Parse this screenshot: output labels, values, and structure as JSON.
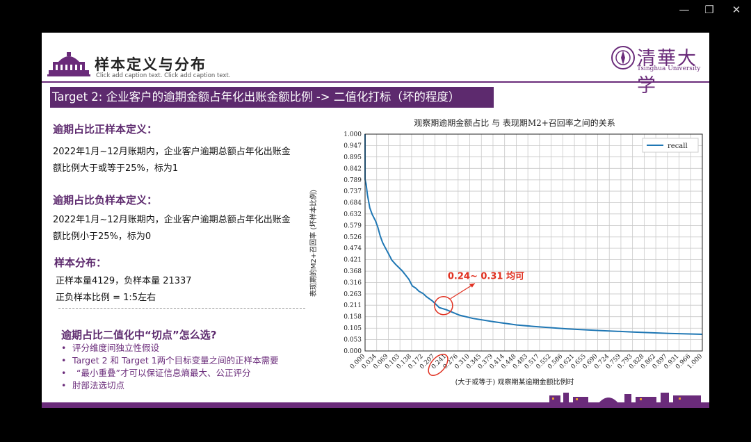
{
  "window": {
    "minimize": "—",
    "restore": "❐",
    "close": "✕"
  },
  "slide": {
    "title": "样本定义与分布",
    "caption": "Click add caption text. Click add caption text.",
    "logo_cn": "清華大学",
    "logo_en": "Tsinghua University",
    "banner": "Target 2: 企业客户的逾期金额占年化出账金额比例 -> 二值化打标（坏的程度）",
    "pos_heading": "逾期占比正样本定义：",
    "pos_line1": "2022年1月~12月账期内，企业客户逾期总额占年化出账金",
    "pos_line2": "额比例大于或等于25%，标为1",
    "neg_heading": "逾期占比负样本定义：",
    "neg_line1": "2022年1月~12月账期内，企业客户逾期总额占年化出账金",
    "neg_line2": "额比例小于25%，标为0",
    "dist_heading": "样本分布：",
    "dist_line1": "正样本量4129，负样本量 21337",
    "dist_line2": "正负样本比例 = 1:5左右",
    "cut_heading": "逾期占比二值化中“切点”怎么选?",
    "bullets": [
      "评分维度间独立性假设",
      "Target 2 和 Target 1两个目标变量之间的正样本需要",
      "“最小重叠”才可以保证信息熵最大、公正评分",
      "肘部法选切点"
    ]
  },
  "chart_data": {
    "type": "line",
    "title": "观察期逾期金额占比  与  表现期M2+召回率之间的关系",
    "xlabel": "(大于或等于) 观察期某逾期金额比例时",
    "ylabel": "表现期的M2+召回率 (坏样本比例)",
    "legend": "recall",
    "legend_position": "top-right",
    "grid": true,
    "annotation": "0.24~ 0.31 均可",
    "highlight_x": 0.241,
    "xlim": [
      0.0,
      1.0
    ],
    "ylim": [
      0.0,
      1.0
    ],
    "xticks": [
      "0.000",
      "0.034",
      "0.069",
      "0.103",
      "0.138",
      "0.172",
      "0.207",
      "0.241",
      "0.276",
      "0.310",
      "0.345",
      "0.379",
      "0.414",
      "0.448",
      "0.483",
      "0.517",
      "0.552",
      "0.586",
      "0.621",
      "0.655",
      "0.690",
      "0.724",
      "0.759",
      "0.793",
      "0.828",
      "0.862",
      "0.897",
      "0.931",
      "0.966",
      "1.000"
    ],
    "yticks": [
      "0.000",
      "0.053",
      "0.105",
      "0.158",
      "0.211",
      "0.263",
      "0.316",
      "0.368",
      "0.421",
      "0.474",
      "0.526",
      "0.579",
      "0.632",
      "0.684",
      "0.737",
      "0.789",
      "0.842",
      "0.895",
      "0.947",
      "1.000"
    ],
    "series": [
      {
        "name": "recall",
        "color": "#1f77b4",
        "x": [
          0.0,
          0.0,
          0.003,
          0.007,
          0.014,
          0.021,
          0.031,
          0.038,
          0.045,
          0.052,
          0.062,
          0.069,
          0.079,
          0.09,
          0.1,
          0.11,
          0.12,
          0.13,
          0.14,
          0.15,
          0.16,
          0.172,
          0.182,
          0.2,
          0.22,
          0.241,
          0.28,
          0.32,
          0.38,
          0.45,
          0.5,
          0.6,
          0.7,
          0.8,
          0.9,
          1.0
        ],
        "y": [
          1.0,
          0.79,
          0.77,
          0.72,
          0.66,
          0.63,
          0.6,
          0.57,
          0.53,
          0.5,
          0.47,
          0.45,
          0.42,
          0.4,
          0.385,
          0.37,
          0.35,
          0.33,
          0.3,
          0.29,
          0.275,
          0.265,
          0.25,
          0.23,
          0.2,
          0.19,
          0.165,
          0.15,
          0.135,
          0.12,
          0.113,
          0.102,
          0.094,
          0.087,
          0.081,
          0.077
        ]
      }
    ]
  }
}
